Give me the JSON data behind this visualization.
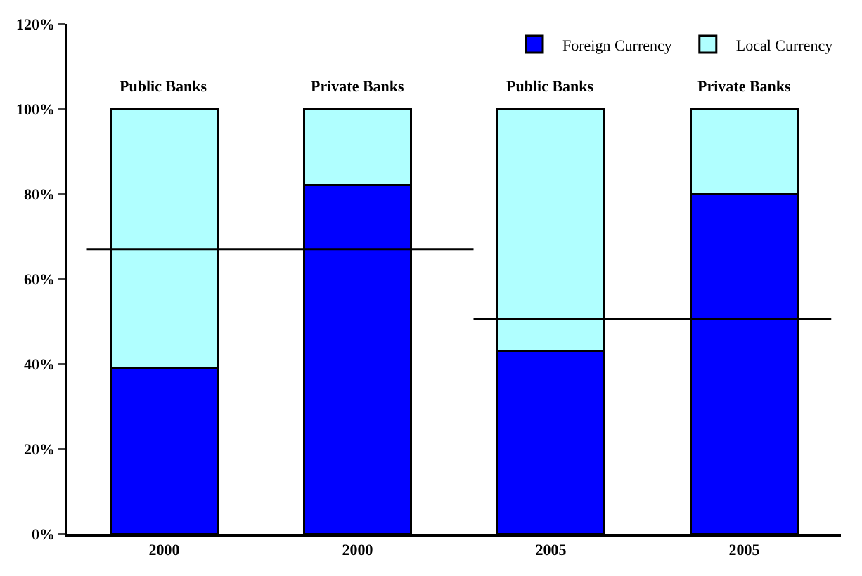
{
  "chart_data": {
    "type": "bar",
    "stacked": true,
    "categories": [
      "2000",
      "2000",
      "2005",
      "2005"
    ],
    "series": [
      {
        "name": "Foreign Currency",
        "color": "#0000ff",
        "values": [
          39,
          82,
          43,
          80
        ]
      },
      {
        "name": "Local Currency",
        "color": "#b0ffff",
        "values": [
          61,
          18,
          57,
          20
        ]
      }
    ],
    "annotations": [
      "Public Banks",
      "Private Banks",
      "Public Banks",
      "Private Banks"
    ],
    "ref_lines": [
      {
        "axis": "y",
        "value": 67,
        "color": "#000000"
      },
      {
        "axis": "y",
        "value": 50.5,
        "color": "#000000"
      }
    ],
    "ylim": [
      0,
      120
    ],
    "yticks": [
      {
        "value": 0,
        "label": "0%"
      },
      {
        "value": 20,
        "label": "20%"
      },
      {
        "value": 40,
        "label": "40%"
      },
      {
        "value": 60,
        "label": "60%"
      },
      {
        "value": 80,
        "label": "80%"
      },
      {
        "value": 100,
        "label": "100%"
      },
      {
        "value": 120,
        "label": "120%"
      }
    ],
    "legend": "top right"
  }
}
